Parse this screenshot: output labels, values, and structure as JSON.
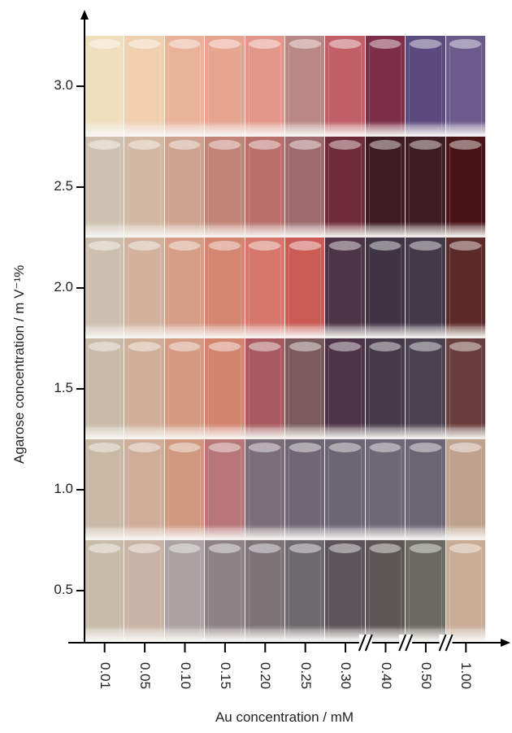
{
  "x_axis": {
    "title": "Au concentration / mM",
    "ticks": [
      "0.01",
      "0.05",
      "0.10",
      "0.15",
      "0.20",
      "0.25",
      "0.30",
      "0.40",
      "0.50",
      "1.00"
    ],
    "axis_breaks_after": [
      "0.30",
      "0.40",
      "0.50"
    ]
  },
  "y_axis": {
    "title": "Agarose concentration / m V⁻¹%",
    "ticks": [
      "3.0",
      "2.5",
      "2.0",
      "1.5",
      "1.0",
      "0.5"
    ]
  },
  "grid": {
    "columns": [
      "0.01",
      "0.05",
      "0.10",
      "0.15",
      "0.20",
      "0.25",
      "0.30",
      "0.40",
      "0.50",
      "1.00"
    ],
    "rows": [
      {
        "agarose": "3.0",
        "colors": [
          "#efdfbd",
          "#efcfae",
          "#e9b39a",
          "#e7a48f",
          "#e3978a",
          "#b98884",
          "#c15f66",
          "#7e2d48",
          "#5a4a7e",
          "#6b5b8c"
        ]
      },
      {
        "agarose": "2.5",
        "colors": [
          "#cfc1b0",
          "#d3b8a3",
          "#cda28e",
          "#c18476",
          "#b9706b",
          "#9e6a6c",
          "#6f2b38",
          "#3e1a22",
          "#3d1c23",
          "#4a1416"
        ]
      },
      {
        "agarose": "2.0",
        "colors": [
          "#cdbfae",
          "#d2b29d",
          "#d69e86",
          "#d48670",
          "#d5786b",
          "#cb5b54",
          "#4d3545",
          "#3f3444",
          "#423a48",
          "#5d2a2a"
        ]
      },
      {
        "agarose": "1.5",
        "colors": [
          "#c9bba8",
          "#d0af98",
          "#d49a82",
          "#d3846d",
          "#a85a5e",
          "#7a5a5d",
          "#4d3345",
          "#453a48",
          "#4a4250",
          "#6a3e3c"
        ]
      },
      {
        "agarose": "1.0",
        "colors": [
          "#c8b8a4",
          "#cfae99",
          "#d0997f",
          "#b97679",
          "#7c6e78",
          "#6f6874",
          "#6c6573",
          "#6e6876",
          "#6b6573",
          "#bfa28e"
        ]
      },
      {
        "agarose": "0.5",
        "colors": [
          "#c8bca9",
          "#c9b3a5",
          "#aba2a3",
          "#8d8386",
          "#7d7478",
          "#6e6a6e",
          "#5b5458",
          "#5d5657",
          "#6a6a62",
          "#c9ac96"
        ]
      }
    ]
  }
}
